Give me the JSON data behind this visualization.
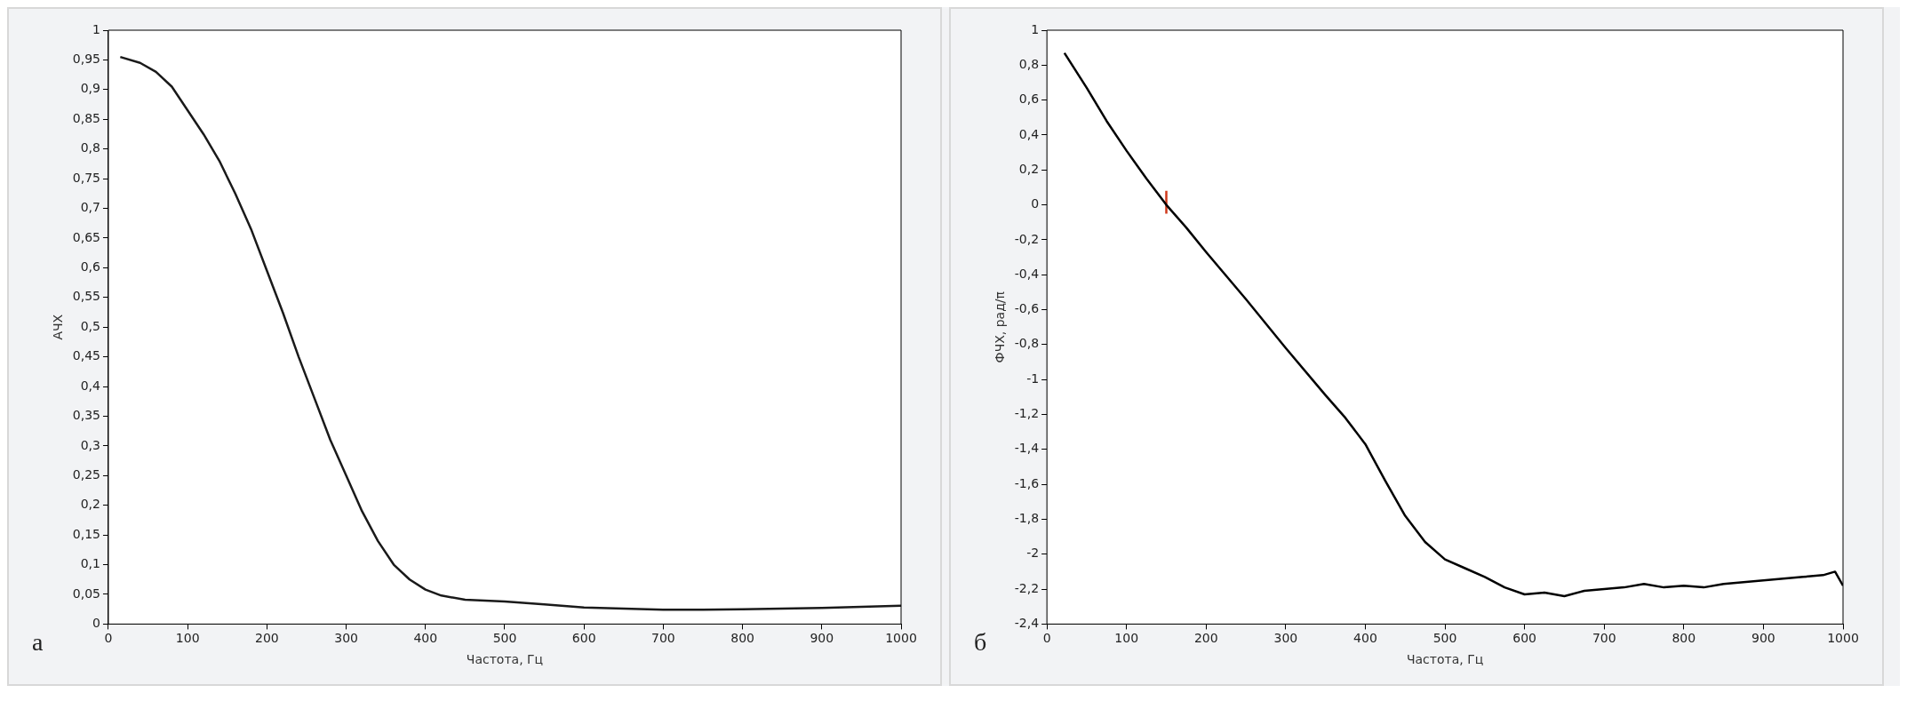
{
  "chart_data": [
    {
      "type": "line",
      "xlabel": "Частота, Гц",
      "ylabel": "АЧХ",
      "annotations": [
        "а"
      ],
      "grid": false,
      "legend": false,
      "line_style": "solid",
      "xlim": [
        0,
        1000
      ],
      "xticks": [
        0,
        100,
        200,
        300,
        400,
        500,
        600,
        700,
        800,
        900,
        1000
      ],
      "ylim": [
        0,
        1
      ],
      "yticks": [
        0,
        {
          "value": 0.05,
          "label": "0,05"
        },
        {
          "value": 0.1,
          "label": "0,1"
        },
        {
          "value": 0.15,
          "label": "0,15"
        },
        {
          "value": 0.2,
          "label": "0,2"
        },
        {
          "value": 0.25,
          "label": "0,25"
        },
        {
          "value": 0.3,
          "label": "0,3"
        },
        {
          "value": 0.35,
          "label": "0,35"
        },
        {
          "value": 0.4,
          "label": "0,4"
        },
        {
          "value": 0.45,
          "label": "0,45"
        },
        {
          "value": 0.5,
          "label": "0,5"
        },
        {
          "value": 0.55,
          "label": "0,55"
        },
        {
          "value": 0.6,
          "label": "0,6"
        },
        {
          "value": 0.65,
          "label": "0,65"
        },
        {
          "value": 0.7,
          "label": "0,7"
        },
        {
          "value": 0.75,
          "label": "0,75"
        },
        {
          "value": 0.8,
          "label": "0,8"
        },
        {
          "value": 0.85,
          "label": "0,85"
        },
        {
          "value": 0.9,
          "label": "0,9"
        },
        {
          "value": 0.95,
          "label": "0,95"
        },
        1
      ],
      "series": [
        {
          "color": "#1a1a1a",
          "x": [
            15,
            40,
            60,
            80,
            100,
            120,
            140,
            160,
            180,
            200,
            220,
            240,
            260,
            280,
            300,
            320,
            340,
            360,
            380,
            400,
            420,
            450,
            500,
            550,
            600,
            650,
            700,
            750,
            800,
            850,
            900,
            950,
            1000
          ],
          "values": [
            0.955,
            0.945,
            0.93,
            0.905,
            0.865,
            0.825,
            0.78,
            0.725,
            0.665,
            0.595,
            0.525,
            0.45,
            0.38,
            0.31,
            0.25,
            0.19,
            0.14,
            0.1,
            0.075,
            0.058,
            0.048,
            0.041,
            0.038,
            0.033,
            0.028,
            0.026,
            0.024,
            0.024,
            0.025,
            0.026,
            0.027,
            0.029,
            0.031
          ]
        }
      ]
    },
    {
      "type": "line",
      "xlabel": "Частота, Гц",
      "ylabel": "ФЧХ, рад/π",
      "annotations": [
        "б"
      ],
      "grid": false,
      "legend": false,
      "line_style": "solid",
      "xlim": [
        0,
        1000
      ],
      "xticks": [
        0,
        100,
        200,
        300,
        400,
        500,
        600,
        700,
        800,
        900,
        1000
      ],
      "ylim": [
        -2.4,
        1
      ],
      "yticks": [
        {
          "value": -2.4,
          "label": "-2,4"
        },
        {
          "value": -2.2,
          "label": "-2,2"
        },
        -2,
        {
          "value": -1.8,
          "label": "-1,8"
        },
        {
          "value": -1.6,
          "label": "-1,6"
        },
        {
          "value": -1.4,
          "label": "-1,4"
        },
        {
          "value": -1.2,
          "label": "-1,2"
        },
        -1,
        {
          "value": -0.8,
          "label": "-0,8"
        },
        {
          "value": -0.6,
          "label": "-0,6"
        },
        {
          "value": -0.4,
          "label": "-0,4"
        },
        {
          "value": -0.2,
          "label": "-0,2"
        },
        0,
        {
          "value": 0.2,
          "label": "0,2"
        },
        {
          "value": 0.4,
          "label": "0,4"
        },
        {
          "value": 0.6,
          "label": "0,6"
        },
        {
          "value": 0.8,
          "label": "0,8"
        },
        1
      ],
      "series": [
        {
          "color": "#000000",
          "x": [
            22,
            50,
            75,
            100,
            125,
            150,
            175,
            200,
            250,
            300,
            350,
            375,
            400,
            425,
            450,
            475,
            500,
            525,
            550,
            575,
            600,
            625,
            650,
            675,
            700,
            725,
            750,
            775,
            800,
            825,
            850,
            875,
            900,
            925,
            950,
            975,
            990,
            1000
          ],
          "values": [
            0.87,
            0.67,
            0.48,
            0.31,
            0.15,
            0.0,
            -0.13,
            -0.27,
            -0.54,
            -0.82,
            -1.09,
            -1.22,
            -1.37,
            -1.58,
            -1.78,
            -1.93,
            -2.03,
            -2.08,
            -2.13,
            -2.19,
            -2.23,
            -2.22,
            -2.24,
            -2.21,
            -2.2,
            -2.19,
            -2.17,
            -2.19,
            -2.18,
            -2.19,
            -2.17,
            -2.16,
            -2.15,
            -2.14,
            -2.13,
            -2.12,
            -2.1,
            -2.18
          ]
        },
        {
          "color": "#d03a1c",
          "x": [
            150,
            150
          ],
          "values": [
            -0.05,
            0.08
          ]
        }
      ]
    }
  ]
}
